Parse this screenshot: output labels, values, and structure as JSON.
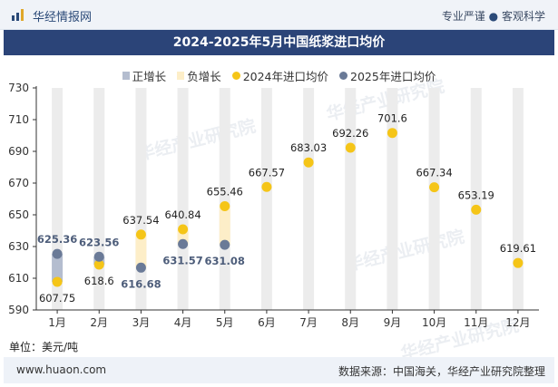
{
  "header": {
    "brand": "华经情报网",
    "tagline_left": "专业严谨",
    "tagline_dot": "●",
    "tagline_right": "客观科学"
  },
  "chart_data": {
    "type": "bar",
    "title": "2024-2025年5月中国纸浆进口均价",
    "categories": [
      "1月",
      "2月",
      "3月",
      "4月",
      "5月",
      "6月",
      "7月",
      "8月",
      "9月",
      "10月",
      "11月",
      "12月"
    ],
    "ylim": [
      590,
      730
    ],
    "yticks": [
      590,
      610,
      630,
      650,
      670,
      690,
      710,
      730
    ],
    "series": [
      {
        "name": "2024年进口均价",
        "type": "scatter",
        "color": "#f5c518",
        "values": [
          607.75,
          618.6,
          637.54,
          640.84,
          655.46,
          667.57,
          683.03,
          692.26,
          701.6,
          667.34,
          653.19,
          619.61
        ]
      },
      {
        "name": "2025年进口均价",
        "type": "scatter",
        "color": "#6a7a97",
        "values": [
          625.36,
          623.56,
          616.68,
          631.57,
          631.08,
          null,
          null,
          null,
          null,
          null,
          null,
          null
        ]
      }
    ],
    "legend": [
      {
        "name": "正增长",
        "color": "#b4bdcf",
        "shape": "bar"
      },
      {
        "name": "负增长",
        "color": "#fdeec8",
        "shape": "bar"
      },
      {
        "name": "2024年进口均价",
        "color": "#f5c518",
        "shape": "dot"
      },
      {
        "name": "2025年进口均价",
        "color": "#6a7a97",
        "shape": "dot"
      }
    ],
    "legend_position": "top-center",
    "change_bars": [
      {
        "month": "1月",
        "type": "positive"
      },
      {
        "month": "2月",
        "type": "positive"
      },
      {
        "month": "3月",
        "type": "negative"
      },
      {
        "month": "4月",
        "type": "negative"
      },
      {
        "month": "5月",
        "type": "negative"
      }
    ],
    "background_column_color": "#ececec",
    "grid": false
  },
  "unit_label": "单位：美元/吨",
  "footer": {
    "site": "www.huaon.com",
    "source": "数据来源：中国海关，华经产业研究院整理"
  },
  "watermark": "华经产业研究院"
}
